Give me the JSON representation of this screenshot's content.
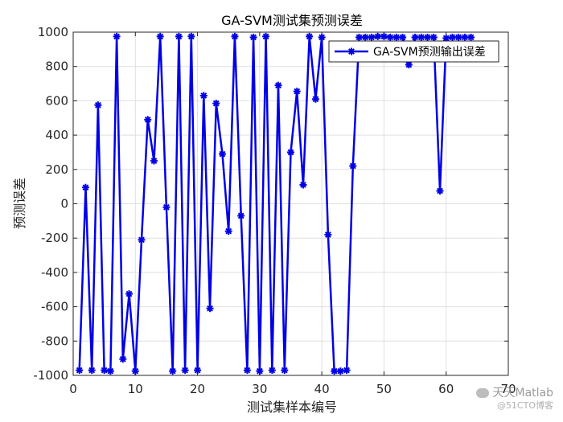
{
  "chart_data": {
    "type": "line",
    "title": "GA-SVM测试集预测误差",
    "xlabel": "测试集样本编号",
    "ylabel": "预测误差",
    "xlim": [
      0,
      70
    ],
    "ylim": [
      -1000,
      1000
    ],
    "xticks": [
      0,
      10,
      20,
      30,
      40,
      50,
      60,
      70
    ],
    "yticks": [
      -1000,
      -800,
      -600,
      -400,
      -200,
      0,
      200,
      400,
      600,
      800,
      1000
    ],
    "grid": true,
    "legend_position": "top-right",
    "colors": {
      "series": "#0000e6",
      "grid": "#dfdfdf",
      "axis": "#262626"
    },
    "series": [
      {
        "name": "GA-SVM预测输出误差",
        "marker": "asterisk",
        "x": [
          1,
          2,
          3,
          4,
          5,
          6,
          7,
          8,
          9,
          10,
          11,
          12,
          13,
          14,
          15,
          16,
          17,
          18,
          19,
          20,
          21,
          22,
          23,
          24,
          25,
          26,
          27,
          28,
          29,
          30,
          31,
          32,
          33,
          34,
          35,
          36,
          37,
          38,
          39,
          40,
          41,
          42,
          43,
          44,
          45,
          46,
          47,
          48,
          49,
          50,
          51,
          52,
          53,
          54,
          55,
          56,
          57,
          58,
          59,
          60,
          61,
          62,
          63,
          64
        ],
        "values": [
          -970,
          95,
          -970,
          575,
          -970,
          -975,
          975,
          -905,
          -525,
          -975,
          -210,
          490,
          250,
          975,
          -20,
          -975,
          975,
          -970,
          975,
          -970,
          630,
          -610,
          585,
          290,
          -160,
          975,
          -70,
          -970,
          970,
          -975,
          975,
          -970,
          690,
          -970,
          300,
          655,
          110,
          975,
          610,
          970,
          -180,
          -975,
          -975,
          -970,
          220,
          970,
          970,
          970,
          975,
          975,
          970,
          970,
          970,
          810,
          970,
          970,
          970,
          970,
          75,
          965,
          970,
          970,
          970,
          970
        ]
      }
    ]
  },
  "watermark": {
    "main": "天天Matlab",
    "sub": "@51CTO博客"
  }
}
